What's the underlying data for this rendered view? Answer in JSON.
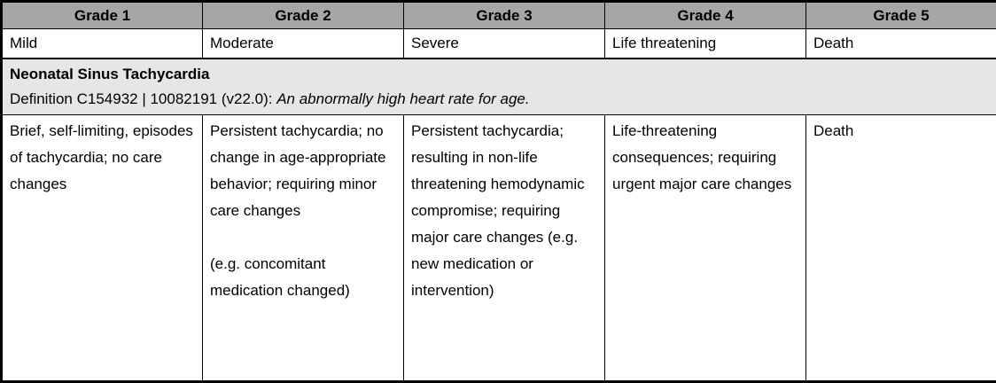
{
  "colors": {
    "header_bg": "#a6a6a6",
    "term_bg": "#e7e6e6",
    "border": "#000000"
  },
  "table": {
    "header": [
      "Grade 1",
      "Grade 2",
      "Grade 3",
      "Grade 4",
      "Grade 5"
    ],
    "severity": [
      "Mild",
      "Moderate",
      "Severe",
      "Life threatening",
      "Death"
    ],
    "term": {
      "name": "Neonatal Sinus Tachycardia",
      "definition_prefix": "Definition C154932 | 10082191 (v22.0): ",
      "definition_text": "An abnormally high heart rate for age."
    },
    "grades": [
      "Brief, self-limiting, episodes of tachycardia; no care changes",
      "Persistent tachycardia; no change in age-appropriate behavior; requiring minor care changes\n\n(e.g. concomitant medication changed)",
      "Persistent tachycardia; resulting in non-life threatening hemodynamic compromise; requiring major care changes (e.g. new medication or intervention)",
      "Life-threatening consequences; requiring urgent major care changes",
      "Death"
    ]
  }
}
